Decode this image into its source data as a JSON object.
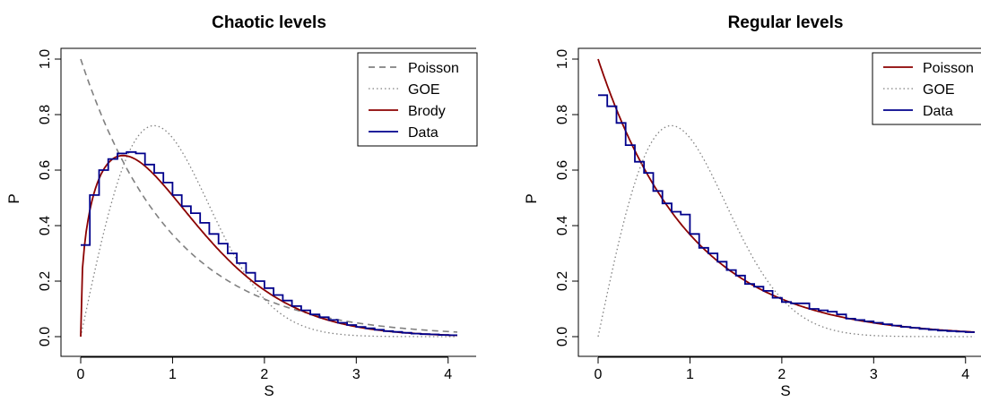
{
  "chart_data": [
    {
      "type": "line",
      "title": "Chaotic levels",
      "xlabel": "S",
      "ylabel": "P",
      "xlim": [
        0,
        4.1
      ],
      "ylim": [
        0,
        1.0
      ],
      "xticks": [
        "0",
        "1",
        "2",
        "3",
        "4"
      ],
      "yticks": [
        "0.0",
        "0.2",
        "0.4",
        "0.6",
        "0.8",
        "1.0"
      ],
      "grid": false,
      "legend_position": "top-right",
      "series": [
        {
          "name": "Poisson",
          "style": "dashed",
          "color": "#808080",
          "function": "exp(-s)",
          "samples": "0..4.1 step 0.05"
        },
        {
          "name": "GOE",
          "style": "dotted",
          "color": "#808080",
          "function": "(pi/2)*s*exp(-pi*s^2/4)",
          "samples": "0..4.1 step 0.025"
        },
        {
          "name": "Brody",
          "style": "solid",
          "color": "#8b0000",
          "function": "brody(beta=0.4)",
          "samples": "0..4.1 step 0.02"
        },
        {
          "name": "Data",
          "style": "step",
          "color": "#00008b",
          "bin_width": 0.1,
          "x": [
            0.0,
            0.1,
            0.2,
            0.3,
            0.4,
            0.5,
            0.6,
            0.7,
            0.8,
            0.9,
            1.0,
            1.1,
            1.2,
            1.3,
            1.4,
            1.5,
            1.6,
            1.7,
            1.8,
            1.9,
            2.0,
            2.1,
            2.2,
            2.3,
            2.4,
            2.5,
            2.6,
            2.7,
            2.8,
            2.9,
            3.0,
            3.1,
            3.2,
            3.3,
            3.4,
            3.5,
            3.6,
            3.7,
            3.8,
            3.9,
            4.0
          ],
          "values": [
            0.33,
            0.51,
            0.6,
            0.64,
            0.66,
            0.665,
            0.66,
            0.62,
            0.59,
            0.555,
            0.51,
            0.47,
            0.445,
            0.41,
            0.37,
            0.335,
            0.3,
            0.265,
            0.23,
            0.2,
            0.175,
            0.15,
            0.13,
            0.11,
            0.095,
            0.08,
            0.07,
            0.06,
            0.05,
            0.042,
            0.035,
            0.03,
            0.025,
            0.02,
            0.017,
            0.014,
            0.011,
            0.009,
            0.008,
            0.006,
            0.005
          ]
        }
      ]
    },
    {
      "type": "line",
      "title": "Regular levels",
      "xlabel": "S",
      "ylabel": "P",
      "xlim": [
        0,
        4.1
      ],
      "ylim": [
        0,
        1.0
      ],
      "xticks": [
        "0",
        "1",
        "2",
        "3",
        "4"
      ],
      "yticks": [
        "0.0",
        "0.2",
        "0.4",
        "0.6",
        "0.8",
        "1.0"
      ],
      "grid": false,
      "legend_position": "top-right",
      "series": [
        {
          "name": "Poisson",
          "style": "solid",
          "color": "#8b0000",
          "function": "exp(-s)",
          "samples": "0..4.1 step 0.02"
        },
        {
          "name": "GOE",
          "style": "dotted",
          "color": "#808080",
          "function": "(pi/2)*s*exp(-pi*s^2/4)",
          "samples": "0..4.1 step 0.025"
        },
        {
          "name": "Data",
          "style": "step",
          "color": "#00008b",
          "bin_width": 0.1,
          "x": [
            0.0,
            0.1,
            0.2,
            0.3,
            0.4,
            0.5,
            0.6,
            0.7,
            0.8,
            0.9,
            1.0,
            1.1,
            1.2,
            1.3,
            1.4,
            1.5,
            1.6,
            1.7,
            1.8,
            1.9,
            2.0,
            2.1,
            2.2,
            2.3,
            2.4,
            2.5,
            2.6,
            2.7,
            2.8,
            2.9,
            3.0,
            3.1,
            3.2,
            3.3,
            3.4,
            3.5,
            3.6,
            3.7,
            3.8,
            3.9,
            4.0
          ],
          "values": [
            0.87,
            0.83,
            0.77,
            0.69,
            0.63,
            0.59,
            0.525,
            0.48,
            0.45,
            0.44,
            0.37,
            0.32,
            0.3,
            0.27,
            0.24,
            0.22,
            0.19,
            0.18,
            0.165,
            0.14,
            0.125,
            0.12,
            0.12,
            0.1,
            0.095,
            0.09,
            0.08,
            0.065,
            0.06,
            0.055,
            0.05,
            0.045,
            0.04,
            0.035,
            0.032,
            0.028,
            0.025,
            0.022,
            0.02,
            0.018,
            0.016
          ]
        }
      ]
    }
  ]
}
